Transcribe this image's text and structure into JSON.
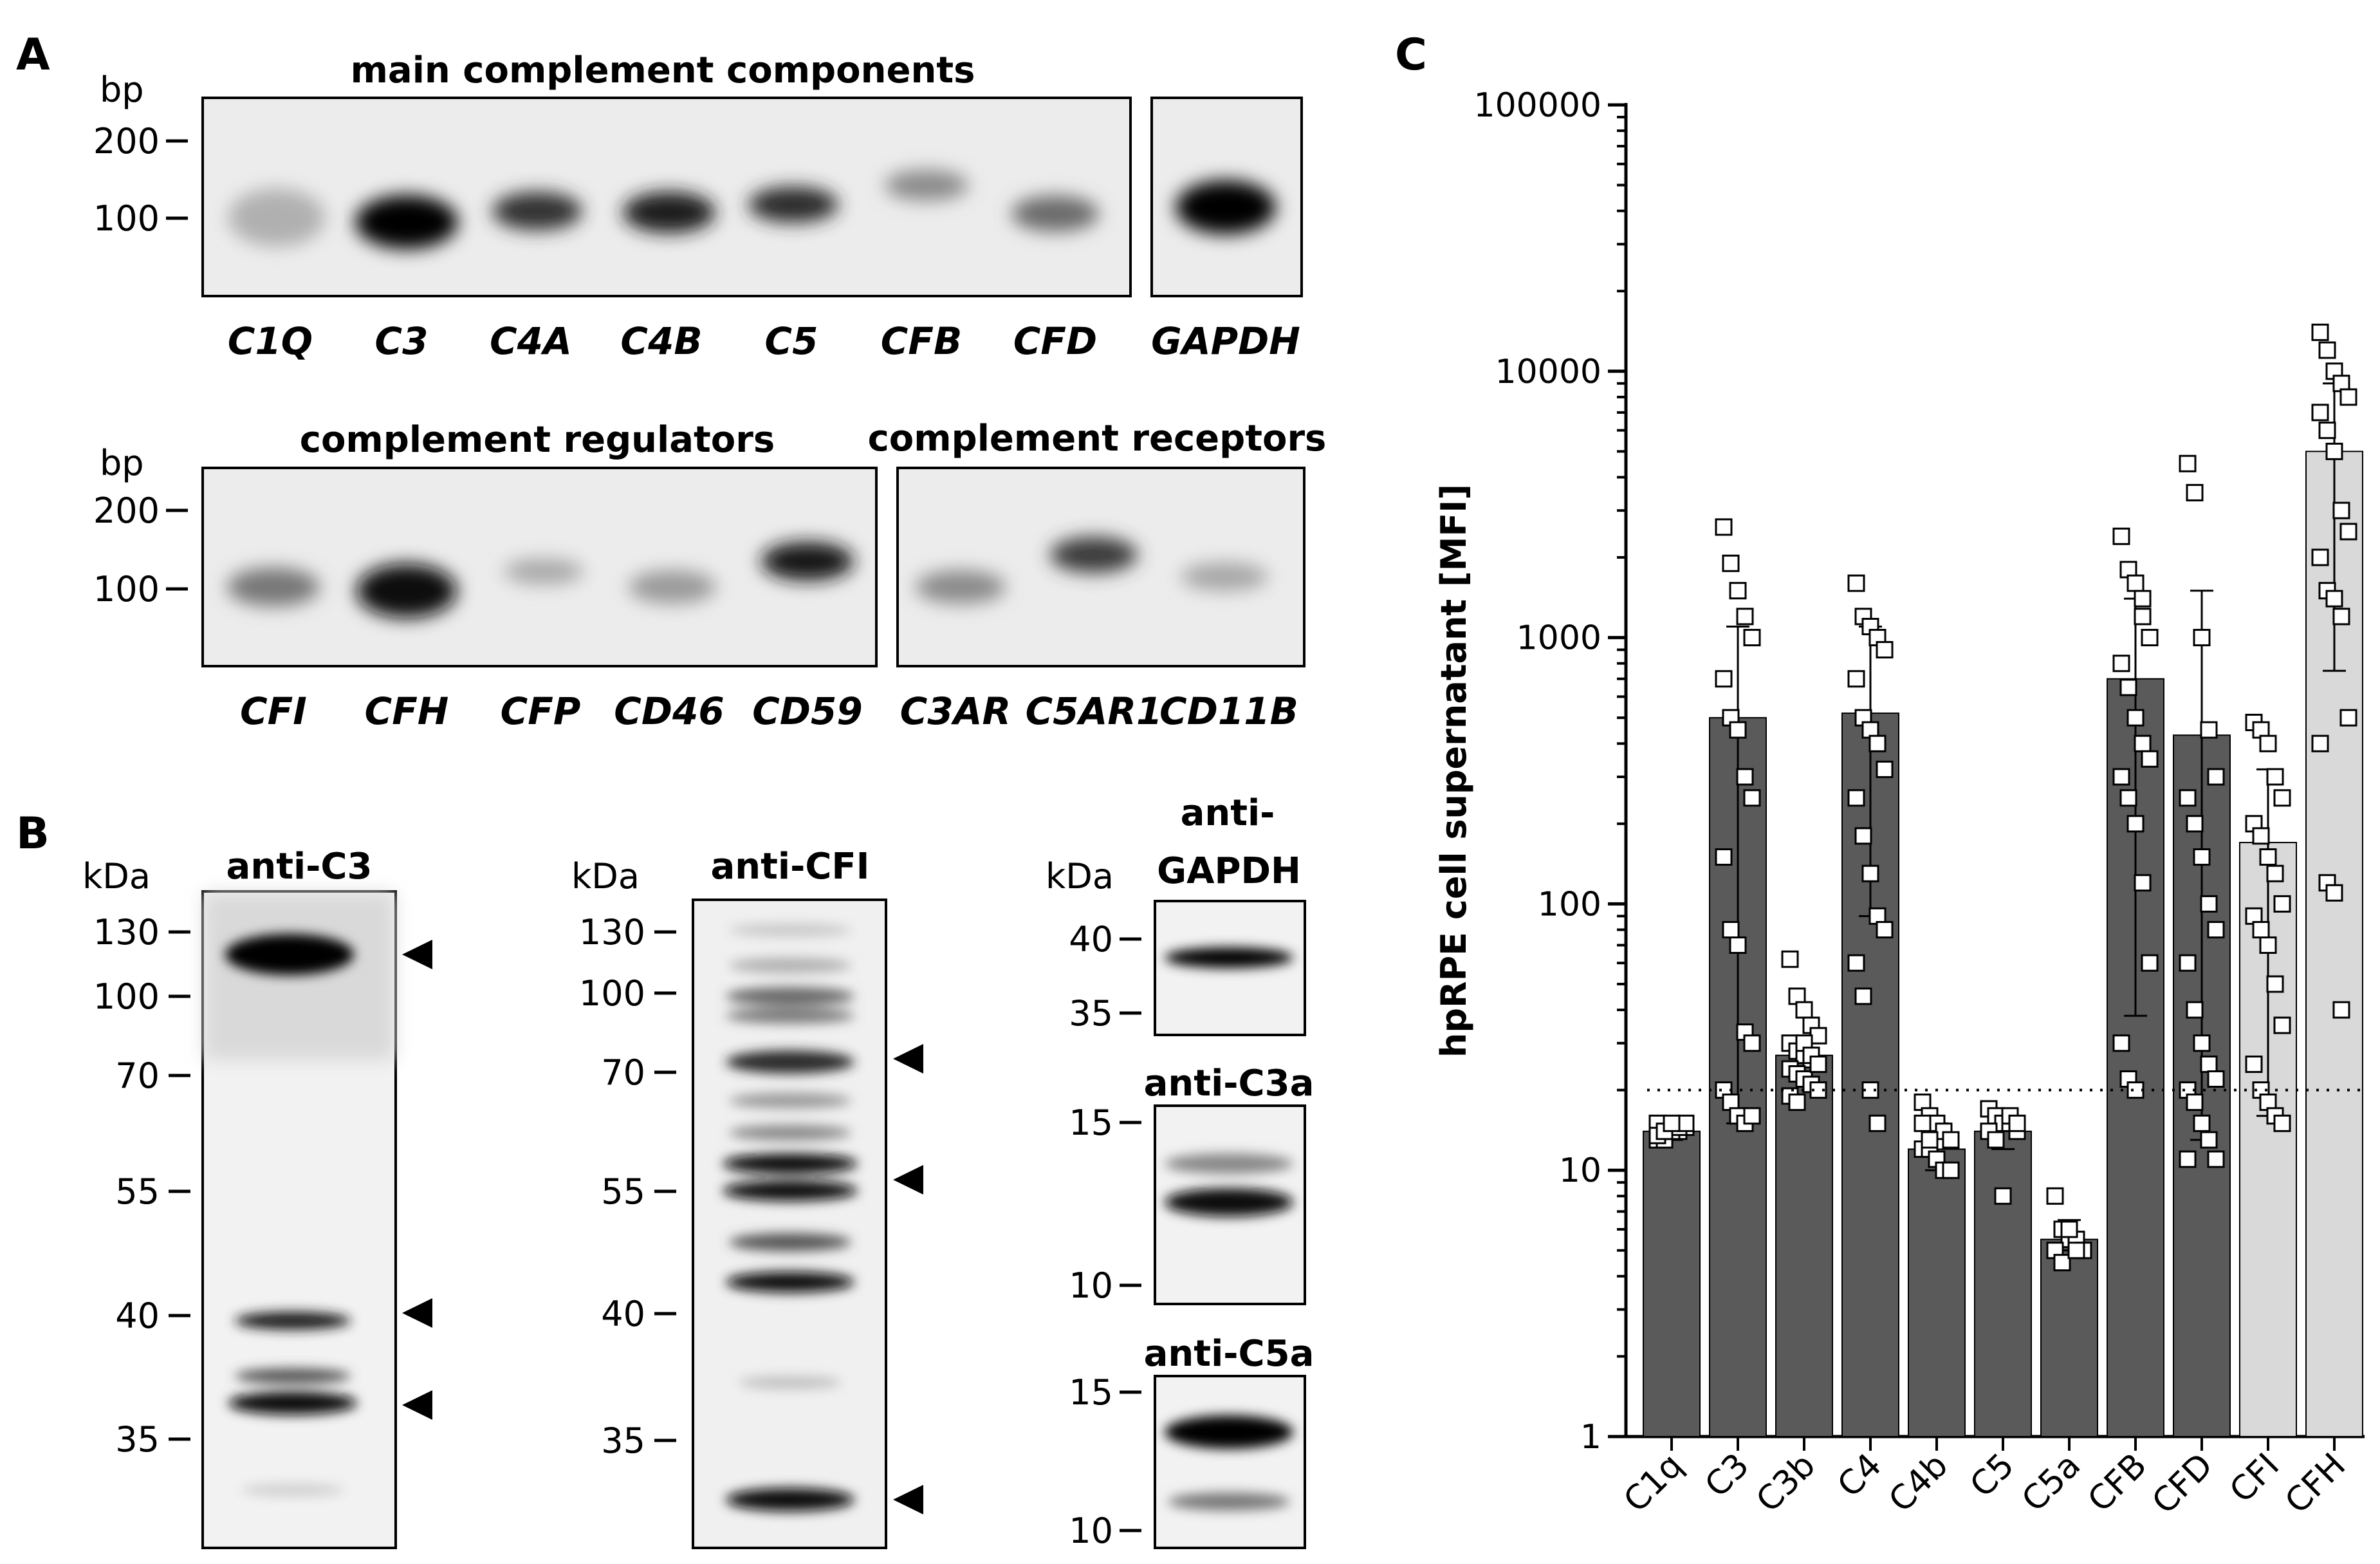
{
  "panel_labels": {
    "a": "A",
    "b": "B",
    "c": "C"
  },
  "panel_a": {
    "bp_label": "bp",
    "ladder": [
      "200",
      "100"
    ],
    "main_title": "main complement components",
    "main_lanes": [
      "C1Q",
      "C3",
      "C4A",
      "C4B",
      "C5",
      "CFB",
      "CFD"
    ],
    "gapdh_lane": "GAPDH",
    "regulators_title": "complement regulators",
    "regulators_lanes": [
      "CFI",
      "CFH",
      "CFP",
      "CD46",
      "CD59"
    ],
    "receptors_title": "complement receptors",
    "receptors_lanes": [
      "C3AR",
      "C5AR1",
      "CD11B"
    ]
  },
  "panel_b": {
    "kda_label": "kDa",
    "c3_title": "anti-C3",
    "c3_ladder": [
      "130",
      "100",
      "70",
      "55",
      "40",
      "35"
    ],
    "cfi_title": "anti-CFI",
    "cfi_ladder": [
      "130",
      "100",
      "70",
      "55",
      "40",
      "35"
    ],
    "gapdh_title_1": "anti-",
    "gapdh_title_2": "GAPDH",
    "gapdh_ladder": [
      "40",
      "35"
    ],
    "c3a_title": "anti-C3a",
    "c3a_ladder": [
      "15",
      "10"
    ],
    "c5a_title": "anti-C5a",
    "c5a_ladder": [
      "15",
      "10"
    ]
  },
  "chart_data": {
    "type": "bar",
    "title": "",
    "xlabel": "",
    "ylabel": "hpRPE cell supernatant [MFI]",
    "yscale": "log",
    "ylim": [
      1,
      100000
    ],
    "yticks": [
      "1",
      "10",
      "100",
      "1000",
      "10000",
      "100000"
    ],
    "threshold": 20,
    "categories": [
      "C1q",
      "C3",
      "C3b",
      "C4",
      "C4b",
      "C5",
      "C5a",
      "CFB",
      "CFD",
      "CFI",
      "CFH"
    ],
    "values": [
      14,
      500,
      27,
      520,
      12,
      14,
      5.5,
      700,
      430,
      170,
      5000
    ],
    "error_upper": [
      15,
      1100,
      32,
      1100,
      15,
      16,
      6.5,
      1400,
      1500,
      320,
      9000
    ],
    "error_lower": [
      13,
      15,
      22,
      90,
      10,
      12,
      5,
      38,
      13,
      16,
      750
    ],
    "bar_colors": [
      "#5a5a5a",
      "#5a5a5a",
      "#5a5a5a",
      "#5a5a5a",
      "#5a5a5a",
      "#5a5a5a",
      "#5a5a5a",
      "#5a5a5a",
      "#5a5a5a",
      "#d9d9d9",
      "#d9d9d9"
    ],
    "points": [
      [
        13,
        13.5,
        14,
        14,
        14.5,
        15,
        13,
        14,
        14.5,
        15,
        13.5,
        14,
        15
      ],
      [
        2600,
        1900,
        1500,
        1200,
        1000,
        700,
        500,
        450,
        300,
        250,
        150,
        80,
        70,
        33,
        30,
        20,
        18,
        16,
        15,
        16
      ],
      [
        62,
        45,
        40,
        35,
        32,
        30,
        28,
        27,
        26,
        25,
        24,
        23,
        22,
        21,
        20,
        19,
        18,
        30,
        27,
        25
      ],
      [
        1600,
        1200,
        1100,
        1000,
        900,
        700,
        500,
        450,
        400,
        320,
        250,
        180,
        130,
        90,
        80,
        60,
        45,
        20,
        15
      ],
      [
        18,
        16,
        15,
        14,
        13,
        12,
        12,
        11,
        10,
        10,
        15,
        13
      ],
      [
        17,
        16,
        15,
        15,
        14,
        14,
        13,
        8,
        16,
        15
      ],
      [
        8,
        6,
        5.5,
        5.5,
        5,
        5,
        4.5,
        6,
        5
      ],
      [
        2400,
        1800,
        1600,
        1200,
        1000,
        800,
        650,
        500,
        400,
        350,
        300,
        250,
        200,
        120,
        60,
        30,
        22,
        20,
        1400
      ],
      [
        4500,
        3500,
        1000,
        450,
        300,
        250,
        200,
        150,
        100,
        80,
        60,
        40,
        30,
        25,
        22,
        20,
        18,
        15,
        13,
        11,
        11
      ],
      [
        480,
        450,
        400,
        300,
        250,
        200,
        180,
        150,
        130,
        100,
        90,
        80,
        70,
        50,
        35,
        25,
        20,
        18,
        16,
        15
      ],
      [
        14000,
        12000,
        10000,
        9000,
        8000,
        7000,
        6000,
        5000,
        3000,
        2500,
        2000,
        1500,
        1400,
        1200,
        500,
        400,
        120,
        110,
        40
      ]
    ]
  }
}
